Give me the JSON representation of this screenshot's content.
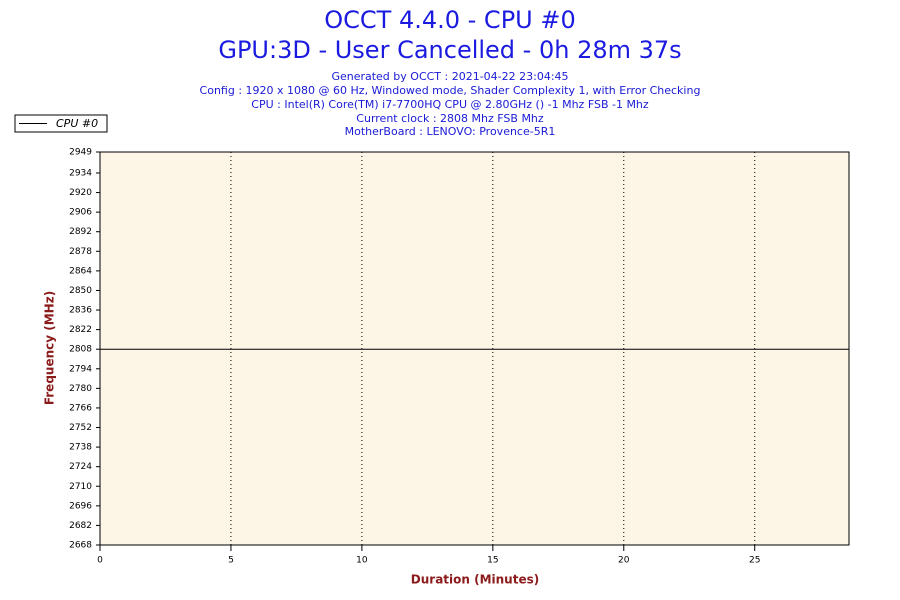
{
  "chart_data": {
    "type": "line",
    "title": "OCCT 4.4.0 - CPU #0",
    "subtitle": "GPU:3D - User Cancelled - 0h 28m 37s",
    "info": [
      "Generated by OCCT : 2021-04-22 23:04:45",
      "Config : 1920 x 1080 @ 60 Hz, Windowed mode, Shader Complexity 1, with Error Checking",
      "CPU : Intel(R) Core(TM) i7-7700HQ CPU @ 2.80GHz () -1 Mhz FSB -1 Mhz",
      "Current clock : 2808 Mhz FSB  Mhz",
      "MotherBoard : LENOVO: Provence-5R1"
    ],
    "x_label": "Duration (Minutes)",
    "y_label": "Frequency (MHz)",
    "x": [
      0,
      28.6
    ],
    "series": [
      {
        "name": "CPU #0",
        "color": "#000000",
        "values": [
          2808,
          2808
        ]
      }
    ],
    "xlim": [
      0,
      28.6
    ],
    "xticks": [
      0,
      5,
      10,
      15,
      20,
      25
    ],
    "ylim": [
      2668,
      2949
    ],
    "yticks": [
      2949,
      2934,
      2920,
      2906,
      2892,
      2878,
      2864,
      2850,
      2836,
      2822,
      2808,
      2794,
      2780,
      2766,
      2752,
      2738,
      2724,
      2710,
      2696,
      2682,
      2668
    ],
    "grid": true,
    "legend": "top-left"
  }
}
